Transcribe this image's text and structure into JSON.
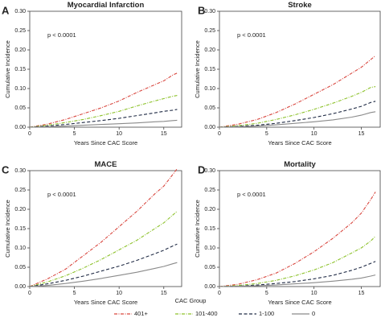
{
  "chart_data": [
    {
      "panel": "A",
      "type": "line",
      "title": "Myocardial Infarction",
      "xlabel": "Years Since CAC Score",
      "ylabel": "Cumulative Incidence",
      "x_ticks": [
        "0",
        "5",
        "10",
        "15"
      ],
      "y_ticks": [
        "0.00",
        "0.05",
        "0.10",
        "0.15",
        "0.20",
        "0.25",
        "0.30"
      ],
      "xlim": [
        0,
        17
      ],
      "ylim": [
        0,
        0.3
      ],
      "annotation": "p < 0.0001",
      "x": [
        0,
        2,
        4,
        6,
        8,
        10,
        12,
        14,
        15,
        16,
        16.5
      ],
      "series": [
        {
          "name": "401+",
          "values": [
            0,
            0.008,
            0.02,
            0.035,
            0.05,
            0.068,
            0.09,
            0.11,
            0.12,
            0.135,
            0.14
          ]
        },
        {
          "name": "101-400",
          "values": [
            0,
            0.005,
            0.012,
            0.02,
            0.03,
            0.041,
            0.055,
            0.068,
            0.074,
            0.08,
            0.082
          ]
        },
        {
          "name": "1-100",
          "values": [
            0,
            0.003,
            0.007,
            0.012,
            0.017,
            0.023,
            0.03,
            0.037,
            0.041,
            0.044,
            0.046
          ]
        },
        {
          "name": "0",
          "values": [
            0,
            0.001,
            0.003,
            0.005,
            0.007,
            0.009,
            0.011,
            0.014,
            0.015,
            0.017,
            0.018
          ]
        }
      ]
    },
    {
      "panel": "B",
      "type": "line",
      "title": "Stroke",
      "xlabel": "Years Since CAC Score",
      "ylabel": "Cumulative Incidence",
      "x_ticks": [
        "0",
        "5",
        "10",
        "15"
      ],
      "y_ticks": [
        "0.00",
        "0.05",
        "0.10",
        "0.15",
        "0.20",
        "0.25",
        "0.30"
      ],
      "xlim": [
        0,
        17
      ],
      "ylim": [
        0,
        0.3
      ],
      "annotation": "p < 0.0001",
      "x": [
        0,
        2,
        4,
        6,
        8,
        10,
        12,
        14,
        15,
        16,
        16.5
      ],
      "series": [
        {
          "name": "401+",
          "values": [
            0,
            0.008,
            0.02,
            0.038,
            0.06,
            0.085,
            0.11,
            0.14,
            0.155,
            0.175,
            0.185
          ]
        },
        {
          "name": "101-400",
          "values": [
            0,
            0.004,
            0.01,
            0.02,
            0.032,
            0.046,
            0.062,
            0.08,
            0.09,
            0.103,
            0.105
          ]
        },
        {
          "name": "1-100",
          "values": [
            0,
            0.002,
            0.005,
            0.01,
            0.017,
            0.025,
            0.035,
            0.047,
            0.054,
            0.064,
            0.067
          ]
        },
        {
          "name": "0",
          "values": [
            0,
            0.001,
            0.003,
            0.006,
            0.01,
            0.014,
            0.019,
            0.026,
            0.031,
            0.038,
            0.04
          ]
        }
      ]
    },
    {
      "panel": "C",
      "type": "line",
      "title": "MACE",
      "xlabel": "Years Since CAC Score",
      "ylabel": "Cumulative Incidence",
      "x_ticks": [
        "0",
        "5",
        "10",
        "15"
      ],
      "y_ticks": [
        "0.00",
        "0.05",
        "0.10",
        "0.15",
        "0.20",
        "0.25",
        "0.30"
      ],
      "xlim": [
        0,
        17
      ],
      "ylim": [
        0,
        0.3
      ],
      "annotation": "p < 0.0001",
      "x": [
        0,
        2,
        4,
        6,
        8,
        10,
        12,
        14,
        15,
        16,
        16.5
      ],
      "series": [
        {
          "name": "401+",
          "values": [
            0,
            0.02,
            0.045,
            0.08,
            0.115,
            0.155,
            0.195,
            0.24,
            0.26,
            0.29,
            0.305
          ]
        },
        {
          "name": "101-400",
          "values": [
            0,
            0.012,
            0.028,
            0.048,
            0.07,
            0.095,
            0.12,
            0.15,
            0.165,
            0.185,
            0.195
          ]
        },
        {
          "name": "1-100",
          "values": [
            0,
            0.007,
            0.016,
            0.027,
            0.04,
            0.053,
            0.068,
            0.085,
            0.094,
            0.105,
            0.11
          ]
        },
        {
          "name": "0",
          "values": [
            0,
            0.003,
            0.008,
            0.014,
            0.021,
            0.029,
            0.037,
            0.047,
            0.052,
            0.059,
            0.062
          ]
        }
      ]
    },
    {
      "panel": "D",
      "type": "line",
      "title": "Mortality",
      "xlabel": "Years Since CAC Score",
      "ylabel": "Cumulative Incidence",
      "x_ticks": [
        "0",
        "5",
        "10",
        "15"
      ],
      "y_ticks": [
        "0.00",
        "0.05",
        "0.10",
        "0.15",
        "0.20",
        "0.25",
        "0.30"
      ],
      "xlim": [
        0,
        17
      ],
      "ylim": [
        0,
        0.3
      ],
      "annotation": "p < 0.0001",
      "x": [
        0,
        2,
        4,
        6,
        8,
        10,
        12,
        14,
        15,
        16,
        16.5
      ],
      "series": [
        {
          "name": "401+",
          "values": [
            0,
            0.006,
            0.018,
            0.035,
            0.06,
            0.09,
            0.125,
            0.165,
            0.19,
            0.225,
            0.245
          ]
        },
        {
          "name": "101-400",
          "values": [
            0,
            0.003,
            0.008,
            0.016,
            0.028,
            0.043,
            0.062,
            0.087,
            0.1,
            0.118,
            0.13
          ]
        },
        {
          "name": "1-100",
          "values": [
            0,
            0.001,
            0.004,
            0.008,
            0.013,
            0.02,
            0.029,
            0.042,
            0.05,
            0.06,
            0.065
          ]
        },
        {
          "name": "0",
          "values": [
            0,
            0.001,
            0.002,
            0.004,
            0.007,
            0.01,
            0.014,
            0.019,
            0.022,
            0.027,
            0.03
          ]
        }
      ]
    }
  ],
  "legend": {
    "title": "CAC Group",
    "placement": "bottom",
    "items": [
      {
        "label": "401+",
        "color": "#d9473f",
        "dash": "dot-dash"
      },
      {
        "label": "101-400",
        "color": "#8dc22b",
        "dash": "dot-dash"
      },
      {
        "label": "1-100",
        "color": "#1f2a44",
        "dash": "dashed"
      },
      {
        "label": "0",
        "color": "#8a8a8a",
        "dash": "solid"
      }
    ]
  },
  "colors": {
    "401+": "#d9473f",
    "101-400": "#8dc22b",
    "1-100": "#1f2a44",
    "0": "#8a8a8a",
    "axis": "#444444",
    "grid": "#e6e6e6"
  }
}
